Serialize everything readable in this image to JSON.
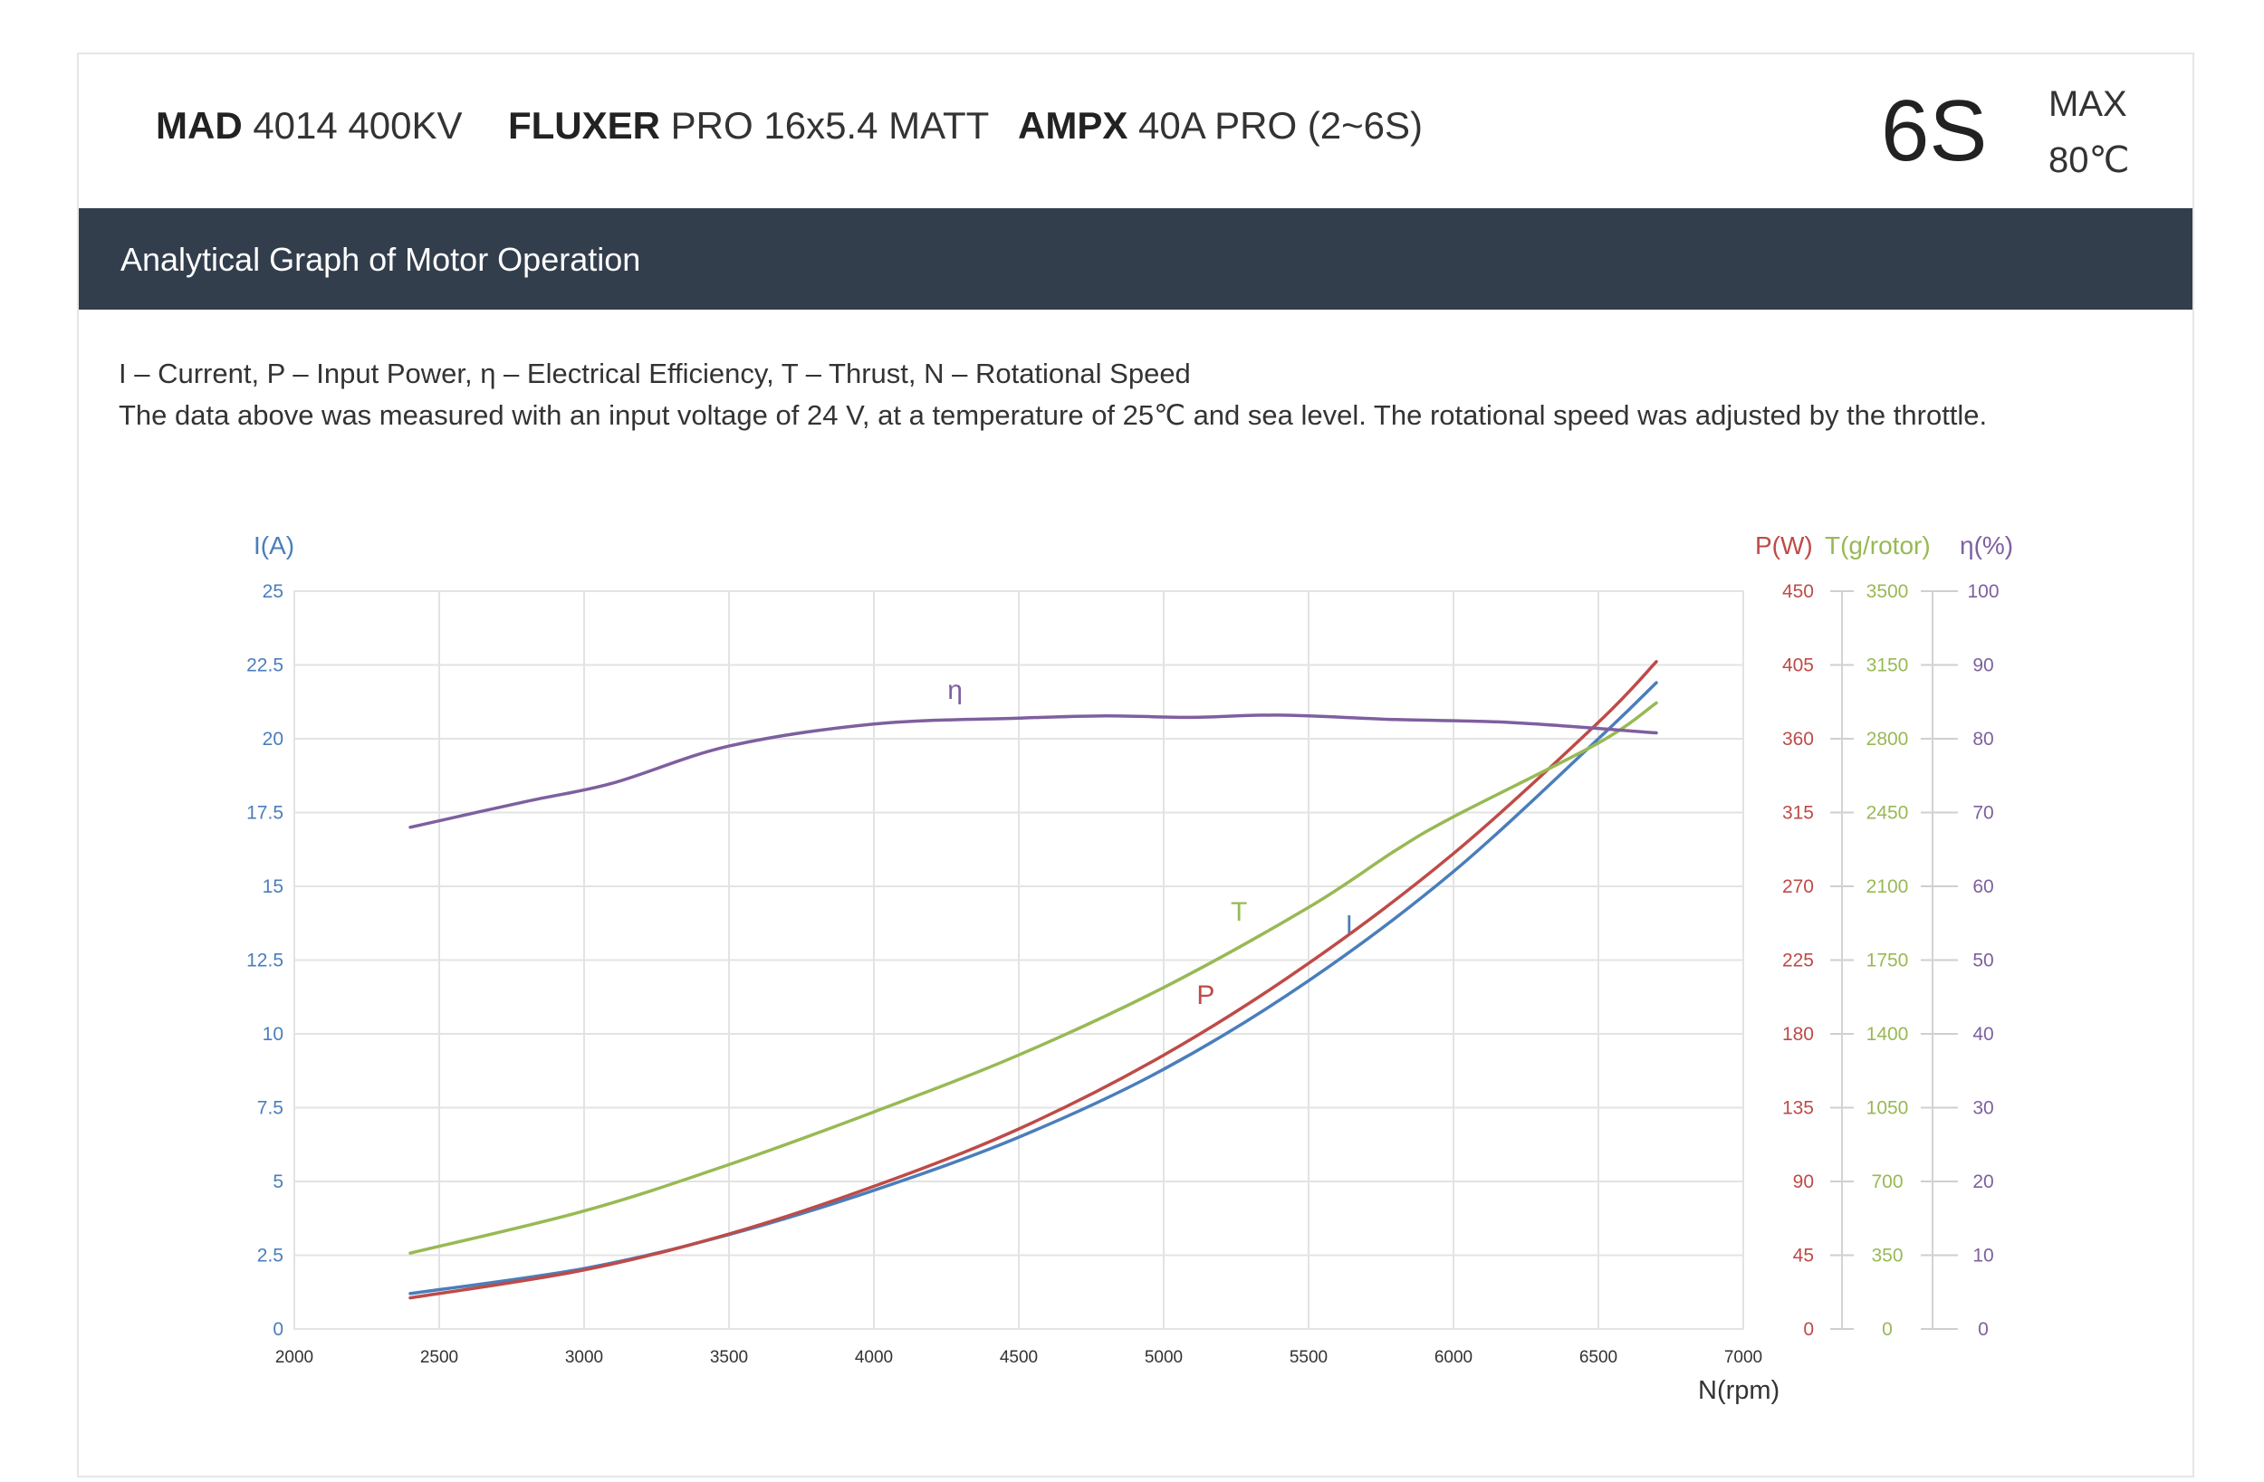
{
  "header": {
    "motor_bold": "MAD",
    "motor_rest": "4014 400KV",
    "prop_bold": "FLUXER",
    "prop_rest": "PRO 16x5.4 MATT",
    "esc_bold": "AMPX",
    "esc_rest": "40A PRO (2~6S)",
    "cells": "6S",
    "max_label": "MAX",
    "max_temp": "80℃"
  },
  "banner": {
    "title": "Analytical Graph of Motor Operation"
  },
  "legend": {
    "line1": "I – Current, P – Input Power, η – Electrical Efficiency, T – Thrust,   N – Rotational Speed",
    "line2": "The data above was measured with an input voltage of 24 V, at a temperature of 25℃ and sea level. The rotational speed was adjusted by the throttle."
  },
  "colors": {
    "current": "#4a7ebb",
    "power": "#be4b48",
    "thrust": "#98b954",
    "efficiency": "#7e5f9f",
    "grid": "#e3e3e3",
    "banner": "#333e4d"
  },
  "chart_data": {
    "type": "line",
    "xlabel": "N(rpm)",
    "xlim": [
      2000,
      7000
    ],
    "x_ticks": [
      "2000",
      "2500",
      "3000",
      "3500",
      "4000",
      "4500",
      "5000",
      "5500",
      "6000",
      "6500",
      "7000"
    ],
    "axes": {
      "I": {
        "label": "I(A)",
        "range": [
          0,
          25
        ],
        "ticks": [
          "0",
          "2.5",
          "5",
          "7.5",
          "10",
          "12.5",
          "15",
          "17.5",
          "20",
          "22.5",
          "25"
        ]
      },
      "P": {
        "label": "P(W)",
        "range": [
          0,
          450
        ],
        "ticks": [
          "0",
          "45",
          "90",
          "135",
          "180",
          "225",
          "270",
          "315",
          "360",
          "405",
          "450"
        ]
      },
      "T": {
        "label": "T(g/rotor)",
        "range": [
          0,
          3500
        ],
        "ticks": [
          "0",
          "350",
          "700",
          "1050",
          "1400",
          "1750",
          "2100",
          "2450",
          "2800",
          "3150",
          "3500"
        ]
      },
      "eta": {
        "label": "η(%)",
        "range": [
          0,
          100
        ],
        "ticks": [
          "0",
          "10",
          "20",
          "30",
          "40",
          "50",
          "60",
          "70",
          "80",
          "90",
          "100"
        ]
      }
    },
    "series": [
      {
        "name": "I",
        "axis": "I",
        "color": "#4a7ebb",
        "x": [
          2400,
          3000,
          3500,
          4000,
          4500,
          5000,
          5500,
          6000,
          6500,
          6700
        ],
        "y": [
          1.2,
          2.05,
          3.2,
          4.7,
          6.5,
          8.8,
          11.8,
          15.5,
          20.0,
          21.9
        ]
      },
      {
        "name": "P",
        "axis": "P",
        "color": "#be4b48",
        "x": [
          2400,
          3000,
          3500,
          4000,
          4500,
          5000,
          5500,
          6000,
          6500,
          6700
        ],
        "y": [
          19,
          36,
          58,
          87,
          122,
          167,
          223,
          290,
          370,
          407
        ]
      },
      {
        "name": "T",
        "axis": "T",
        "color": "#98b954",
        "x": [
          2400,
          3000,
          3500,
          4000,
          4500,
          5000,
          5500,
          5800,
          6000,
          6500,
          6700
        ],
        "y": [
          360,
          560,
          780,
          1030,
          1300,
          1620,
          2000,
          2270,
          2430,
          2780,
          2970
        ]
      },
      {
        "name": "η",
        "axis": "eta",
        "color": "#7e5f9f",
        "x": [
          2400,
          2800,
          3100,
          3500,
          4000,
          4500,
          4800,
          5100,
          5400,
          5800,
          6200,
          6700
        ],
        "y": [
          68,
          71.5,
          74,
          79,
          82,
          82.8,
          83.1,
          82.9,
          83.2,
          82.6,
          82.2,
          80.8
        ]
      }
    ]
  }
}
